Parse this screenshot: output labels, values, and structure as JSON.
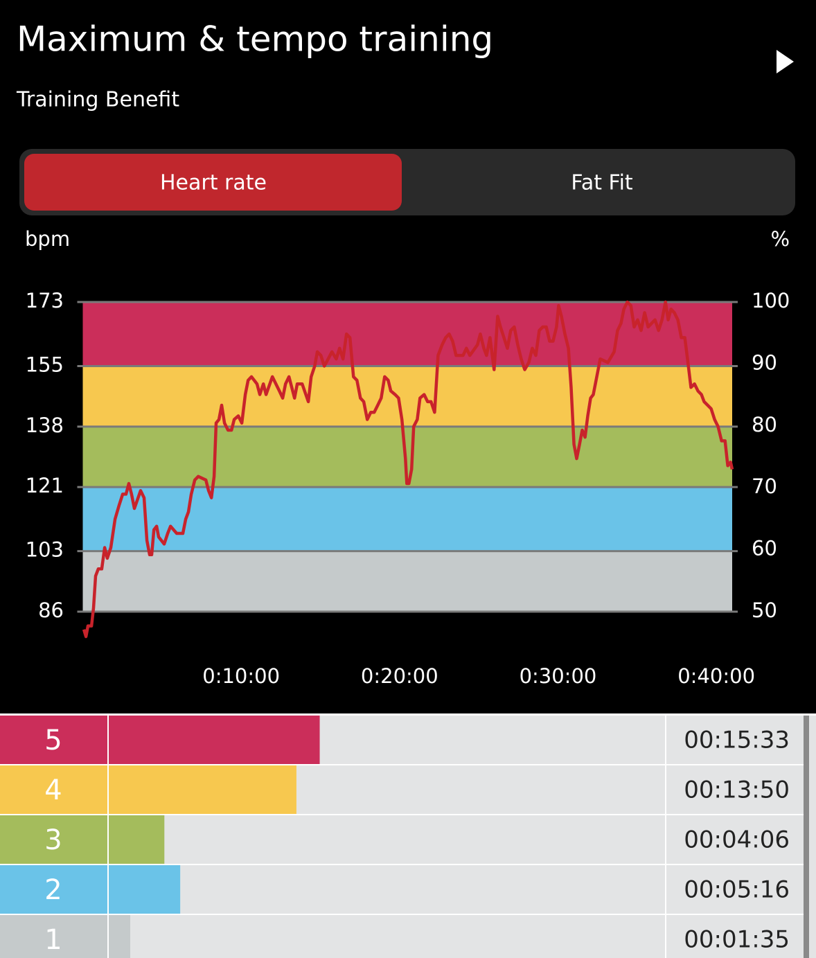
{
  "header": {
    "title": "Maximum & tempo training",
    "subtitle": "Training Benefit"
  },
  "tabs": {
    "labels": [
      "Heart rate",
      "Fat Fit"
    ],
    "active": 0
  },
  "chart_data": {
    "type": "line",
    "y_label": "bpm",
    "y2_label": "%",
    "x": [
      0.07,
      0.2,
      0.33,
      0.55,
      0.68,
      0.81,
      0.98,
      1.2,
      1.38,
      1.55,
      1.77,
      2.04,
      2.3,
      2.52,
      2.73,
      2.91,
      3.08,
      3.26,
      3.65,
      3.87,
      4.05,
      4.22,
      4.35,
      4.49,
      4.66,
      4.79,
      5.14,
      5.36,
      5.54,
      5.93,
      6.32,
      6.5,
      6.67,
      6.85,
      7.07,
      7.29,
      7.77,
      7.94,
      8.12,
      8.29,
      8.42,
      8.6,
      8.77,
      8.95,
      9.17,
      9.39,
      9.56,
      9.82,
      10.04,
      10.26,
      10.44,
      10.65,
      11,
      11.18,
      11.4,
      11.57,
      11.97,
      12.41,
      12.62,
      12.8,
      13.02,
      13.37,
      13.54,
      13.85,
      14.24,
      14.42,
      14.64,
      14.81,
      15.03,
      15.25,
      15.73,
      16,
      16.21,
      16.43,
      16.65,
      16.87,
      17.09,
      17.31,
      17.53,
      17.74,
      17.96,
      18.18,
      18.4,
      18.62,
      18.84,
      19.06,
      19.28,
      19.45,
      19.72,
      19.94,
      20.15,
      20.37,
      20.46,
      20.59,
      20.76,
      20.89,
      21.12,
      21.29,
      21.55,
      21.77,
      21.99,
      22.21,
      22.43,
      22.69,
      22.91,
      23.13,
      23.35,
      23.57,
      24.01,
      24.22,
      24.44,
      24.92,
      25.1,
      25.32,
      25.49,
      25.71,
      25.97,
      26.19,
      26.37,
      26.59,
      26.81,
      27.02,
      27.24,
      27.46,
      27.68,
      27.9,
      28.16,
      28.38,
      28.6,
      28.82,
      29.04,
      29.26,
      29.47,
      29.69,
      29.91,
      30.04,
      30.22,
      30.44,
      30.66,
      30.83,
      31.01,
      31.18,
      31.36,
      31.53,
      31.71,
      31.88,
      32.06,
      32.23,
      32.45,
      32.67,
      33.15,
      33.55,
      33.76,
      33.98,
      34.16,
      34.38,
      34.6,
      34.81,
      35.03,
      35.25,
      35.47,
      35.69,
      36.13,
      36.35,
      36.57,
      36.79,
      36.96,
      37.14,
      37.35,
      37.57,
      37.79,
      38.01,
      38.18,
      38.4,
      38.62,
      38.84,
      39.06,
      39.23,
      39.45,
      39.67,
      39.89,
      40.11,
      40.33,
      40.55,
      40.72,
      40.9,
      41.0
    ],
    "series": [
      {
        "color": "#c8232b",
        "values": [
          81,
          79,
          82,
          82,
          87,
          96,
          98,
          98,
          104,
          101,
          104,
          112,
          116,
          119,
          119,
          122,
          119,
          115,
          120,
          118,
          106,
          102,
          102,
          109,
          110,
          107,
          105,
          108,
          110,
          108,
          108,
          112,
          114,
          119,
          123,
          124,
          123,
          120,
          118,
          124,
          139,
          140,
          144,
          139,
          137,
          137,
          140,
          141,
          139,
          147,
          151,
          152,
          150,
          147,
          150,
          147,
          152,
          148,
          146,
          150,
          152,
          146,
          150,
          150,
          145,
          152,
          155,
          159,
          158,
          155,
          159,
          157,
          160,
          157,
          164,
          163,
          152,
          151,
          146,
          145,
          140,
          142,
          142,
          144,
          146,
          152,
          151,
          148,
          147,
          146,
          140,
          129,
          122,
          122,
          126,
          138,
          140,
          146,
          147,
          145,
          145,
          142,
          158,
          161,
          163,
          164,
          162,
          158,
          158,
          160,
          158,
          161,
          164,
          160,
          158,
          163,
          154,
          169,
          166,
          163,
          160,
          165,
          166,
          161,
          157,
          154,
          156,
          160,
          158,
          165,
          166,
          166,
          162,
          162,
          166,
          172,
          169,
          164,
          160,
          149,
          133,
          129,
          133,
          137,
          135,
          141,
          146,
          147,
          152,
          157,
          156,
          159,
          165,
          167,
          171,
          173,
          172,
          166,
          168,
          165,
          170,
          166,
          168,
          165,
          168,
          173,
          168,
          171,
          170,
          168,
          163,
          163,
          157,
          149,
          150,
          148,
          147,
          145,
          144,
          143,
          140,
          138,
          134,
          134,
          127,
          128,
          126
        ]
      }
    ],
    "xlim": [
      0,
      41
    ],
    "xticks": [
      {
        "value": 10,
        "label": "0:10:00"
      },
      {
        "value": 20,
        "label": "0:20:00"
      },
      {
        "value": 30,
        "label": "0:30:00"
      },
      {
        "value": 40,
        "label": "0:40:00"
      }
    ],
    "ylim": [
      86,
      173
    ],
    "yticks": [
      173,
      155,
      138,
      121,
      103,
      86
    ],
    "y2lim": [
      50,
      100
    ],
    "y2ticks": [
      100,
      90,
      80,
      70,
      60,
      50
    ],
    "band_colors": [
      "#cb2e5a",
      "#f7c84f",
      "#a4bc5c",
      "#6ac3e8",
      "#c5cacb"
    ]
  },
  "zones": {
    "names": [
      "5",
      "4",
      "3",
      "2",
      "1"
    ],
    "colors": [
      "#cb2e5a",
      "#f7c84f",
      "#a4bc5c",
      "#6ac3e8",
      "#c5cacb"
    ],
    "values": [
      933,
      830,
      246,
      316,
      95
    ],
    "value_labels": [
      "00:15:33",
      "00:13:50",
      "00:04:06",
      "00:05:16",
      "00:01:35"
    ],
    "xlim": [
      0,
      2460
    ]
  }
}
